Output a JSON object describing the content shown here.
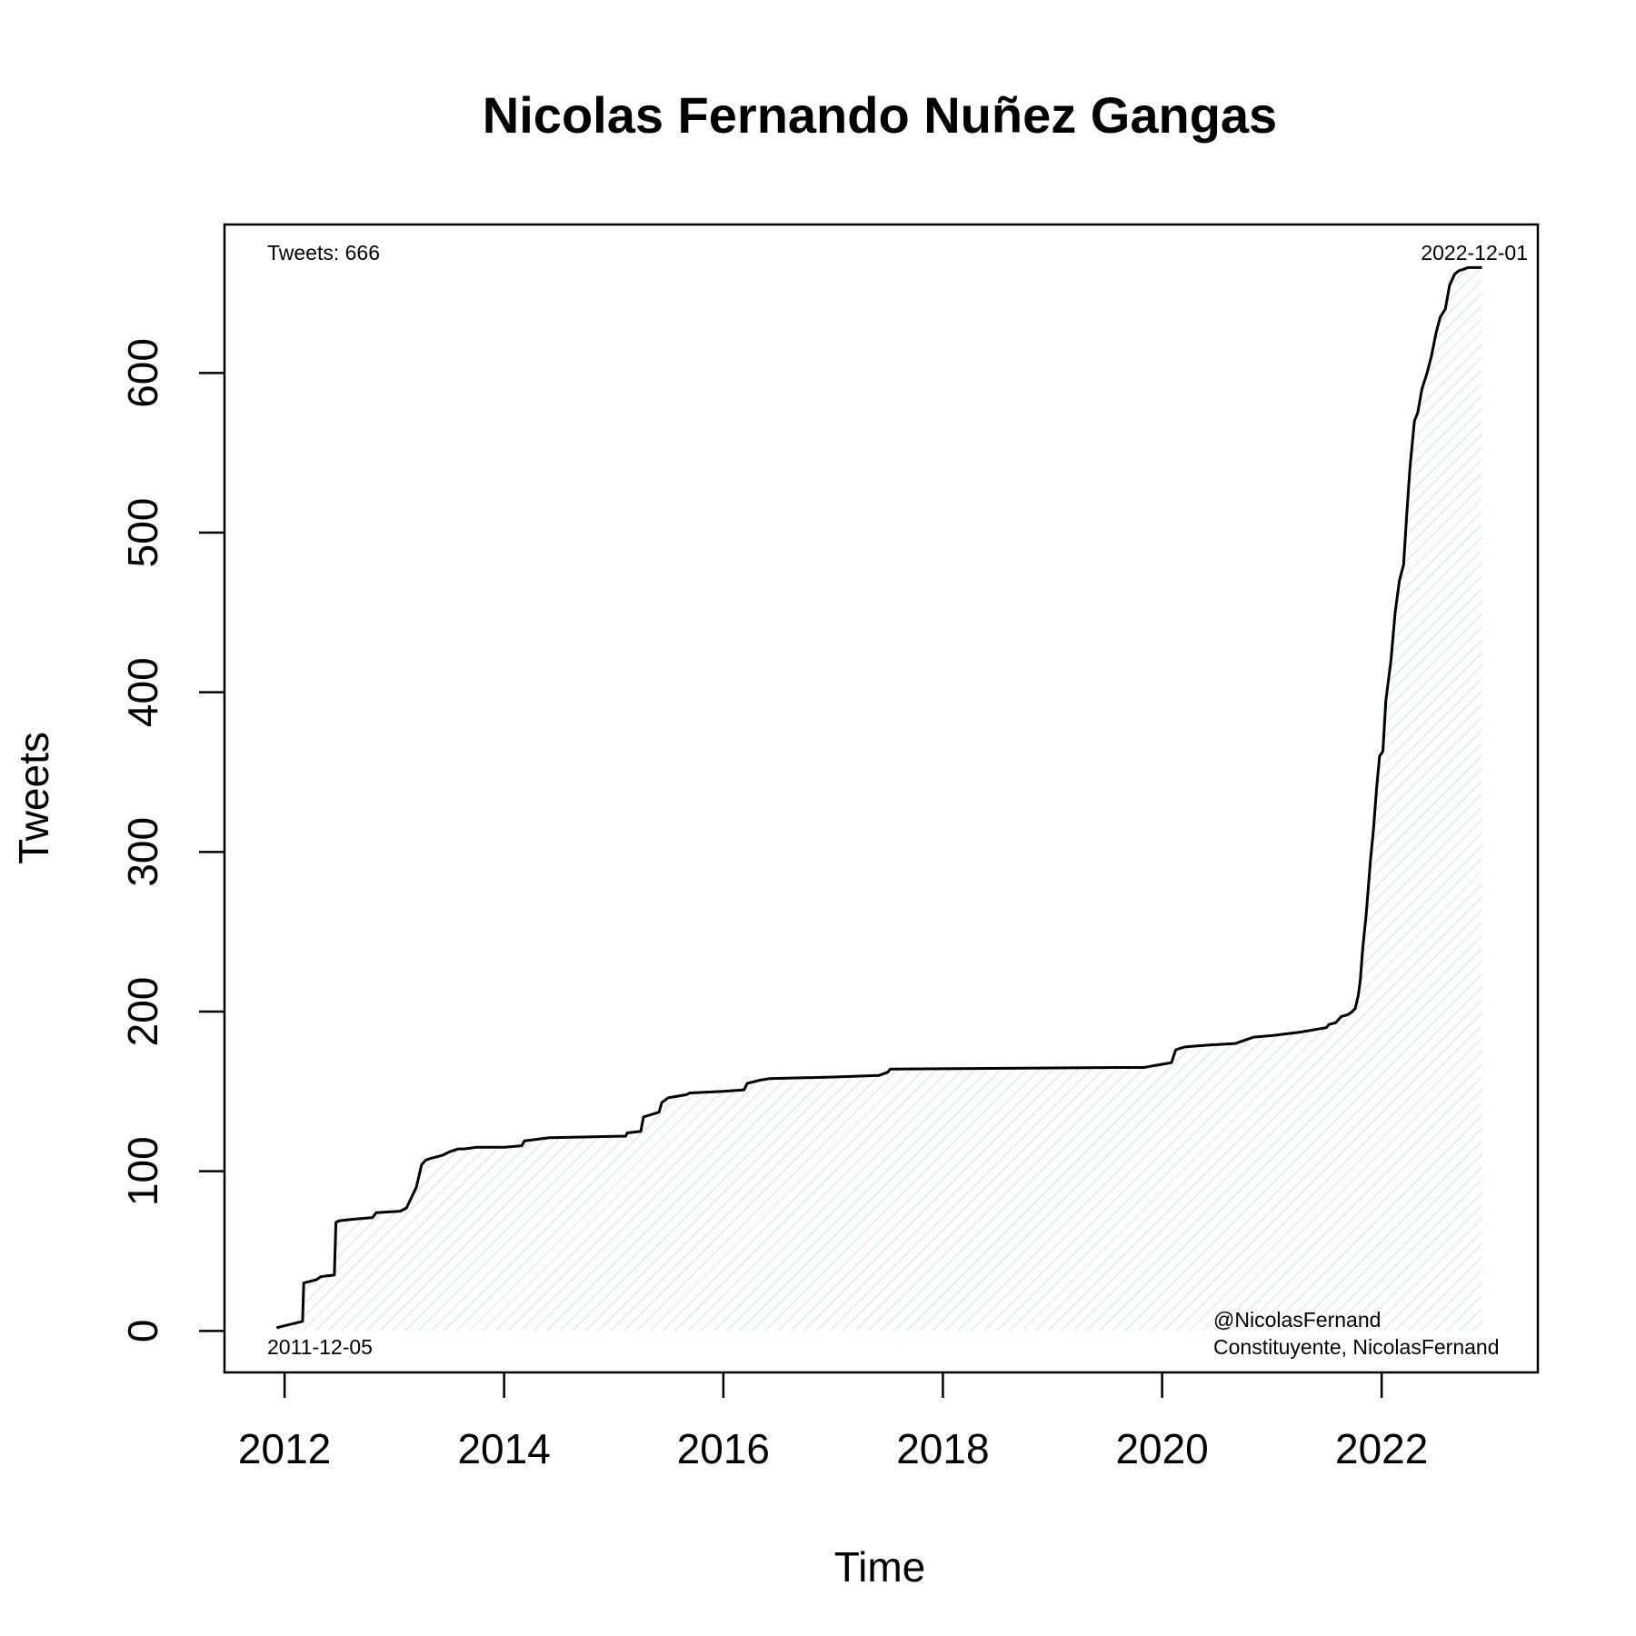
{
  "chart_data": {
    "type": "line",
    "title": "Nicolas Fernando Nuñez Gangas",
    "xlabel": "Time",
    "ylabel": "Tweets",
    "xlim": [
      "2011-06-15",
      "2023-06-05"
    ],
    "ylim": [
      -26,
      693
    ],
    "x_ticks": [
      "2012",
      "2014",
      "2016",
      "2018",
      "2020",
      "2022"
    ],
    "y_ticks": [
      "0",
      "100",
      "200",
      "300",
      "400",
      "500",
      "600"
    ],
    "grid": false,
    "colors": {
      "line": "#000000",
      "fill_hatch": "#d9ecf2"
    },
    "annotations": {
      "top_left": "Tweets: 666",
      "top_right": "2022-12-01",
      "bottom_left": "2011-12-05",
      "bottom_right_line1": "@NicolasFernand",
      "bottom_right_line2": "Constituyente, NicolasFernand"
    },
    "series": [
      {
        "x": [
          "2011-12-05",
          "2012-03-01",
          "2012-03-05",
          "2012-04-15",
          "2012-05-01",
          "2012-06-15",
          "2012-06-20",
          "2012-07-01",
          "2012-08-20",
          "2012-10-20",
          "2012-11-01",
          "2013-01-20",
          "2013-02-10",
          "2013-03-15",
          "2013-04-01",
          "2013-04-15",
          "2013-05-01",
          "2013-06-10",
          "2013-07-01",
          "2013-08-01",
          "2013-08-20",
          "2013-10-01",
          "2014-01-01",
          "2014-03-01",
          "2014-03-10",
          "2014-06-01",
          "2015-02-10",
          "2015-02-15",
          "2015-04-01",
          "2015-04-10",
          "2015-06-01",
          "2015-06-10",
          "2015-07-01",
          "2015-08-01",
          "2015-09-01",
          "2015-09-10",
          "2016-01-01",
          "2016-03-10",
          "2016-03-20",
          "2016-05-01",
          "2016-06-01",
          "2017-01-01",
          "2017-06-01",
          "2017-07-01",
          "2017-07-10",
          "2019-08-01",
          "2019-11-01",
          "2019-12-01",
          "2020-01-01",
          "2020-02-01",
          "2020-02-15",
          "2020-03-01",
          "2020-03-20",
          "2020-06-01",
          "2020-09-01",
          "2020-10-01",
          "2020-11-01",
          "2021-01-01",
          "2021-04-01",
          "2021-05-01",
          "2021-06-01",
          "2021-07-01",
          "2021-07-10",
          "2021-08-01",
          "2021-08-20",
          "2021-09-10",
          "2021-09-25",
          "2021-10-05",
          "2021-10-15",
          "2021-10-22",
          "2021-10-30",
          "2021-11-10",
          "2021-11-25",
          "2021-12-05",
          "2021-12-15",
          "2021-12-25",
          "2022-01-05",
          "2022-01-15",
          "2022-02-01",
          "2022-02-15",
          "2022-03-01",
          "2022-03-15",
          "2022-03-25",
          "2022-04-05",
          "2022-04-20",
          "2022-05-01",
          "2022-05-15",
          "2022-06-01",
          "2022-06-15",
          "2022-07-01",
          "2022-07-15",
          "2022-08-01",
          "2022-08-15",
          "2022-09-01",
          "2022-09-15",
          "2022-10-01",
          "2022-10-15",
          "2022-11-01",
          "2022-11-15",
          "2022-12-01"
        ],
        "y": [
          2,
          6,
          30,
          32,
          34,
          35,
          68,
          69,
          70,
          71,
          74,
          75,
          77,
          90,
          104,
          107,
          108,
          110,
          112,
          114,
          114,
          115,
          115,
          116,
          119,
          121,
          122,
          124,
          125,
          134,
          137,
          143,
          146,
          147,
          148,
          149,
          150,
          151,
          155,
          157,
          158,
          159,
          160,
          162,
          164,
          165,
          165,
          166,
          167,
          168,
          176,
          177,
          178,
          179,
          180,
          182,
          184,
          185,
          187,
          188,
          189,
          190,
          192,
          193,
          197,
          198,
          200,
          202,
          210,
          220,
          240,
          260,
          295,
          315,
          340,
          360,
          363,
          395,
          420,
          450,
          470,
          480,
          510,
          540,
          570,
          575,
          590,
          600,
          610,
          625,
          635,
          640,
          655,
          662,
          664,
          665,
          666,
          666,
          666,
          666
        ]
      }
    ]
  }
}
